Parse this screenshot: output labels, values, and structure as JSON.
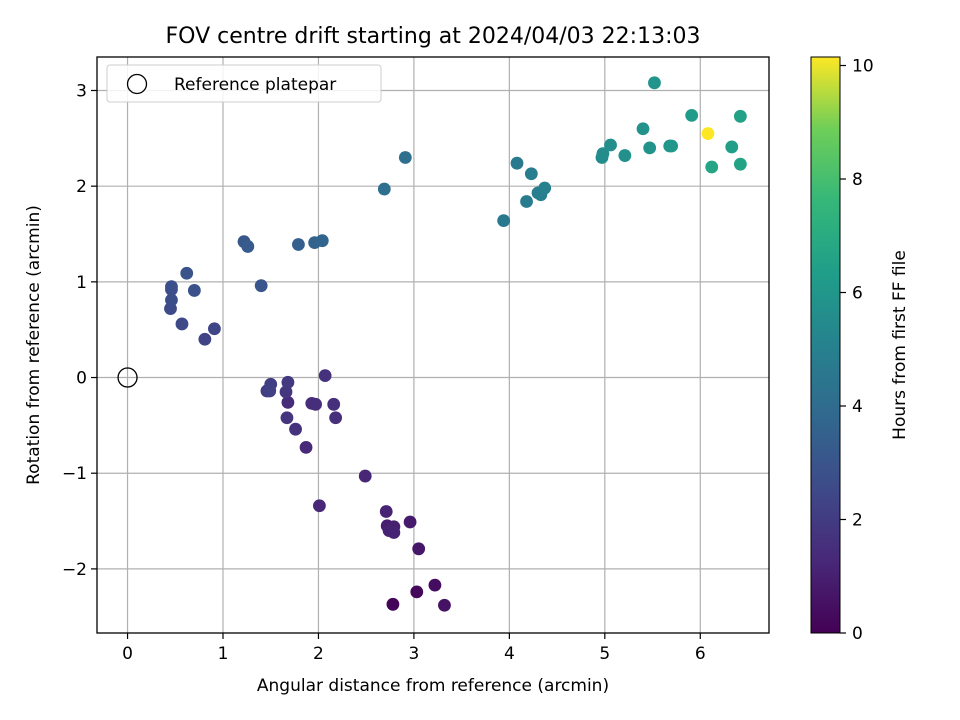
{
  "chart_data": {
    "type": "scatter",
    "title": "FOV centre drift starting at 2024/04/03 22:13:03",
    "xlabel": "Angular distance from reference (arcmin)",
    "ylabel": "Rotation from reference (arcmin)",
    "xlim": [
      -0.32,
      6.72
    ],
    "ylim": [
      -2.67,
      3.35
    ],
    "xticks": [
      0,
      1,
      2,
      3,
      4,
      5,
      6
    ],
    "yticks": [
      -2,
      -1,
      0,
      1,
      2,
      3
    ],
    "xtick_labels": [
      "0",
      "1",
      "2",
      "3",
      "4",
      "5",
      "6"
    ],
    "ytick_labels": [
      "−2",
      "−1",
      "0",
      "1",
      "2",
      "3"
    ],
    "grid": true,
    "legend": {
      "placement": "top-left",
      "entries": [
        "Reference platepar"
      ]
    },
    "reference_point": {
      "x": 0,
      "y": 0,
      "label": "Reference platepar"
    },
    "colorbar": {
      "label": "Hours from first FF file",
      "colormap": "viridis",
      "range": [
        0,
        10.15
      ],
      "ticks": [
        0,
        2,
        4,
        6,
        8,
        10
      ],
      "tick_labels": [
        "0",
        "2",
        "4",
        "6",
        "8",
        "10"
      ]
    },
    "points": [
      {
        "x": 2.78,
        "y": -2.37,
        "c": 0.1
      },
      {
        "x": 3.03,
        "y": -2.24,
        "c": 0.25
      },
      {
        "x": 3.22,
        "y": -2.17,
        "c": 0.4
      },
      {
        "x": 3.32,
        "y": -2.38,
        "c": 0.55
      },
      {
        "x": 3.05,
        "y": -1.79,
        "c": 0.7
      },
      {
        "x": 2.96,
        "y": -1.51,
        "c": 0.85
      },
      {
        "x": 2.72,
        "y": -1.55,
        "c": 0.95
      },
      {
        "x": 2.79,
        "y": -1.56,
        "c": 1.0
      },
      {
        "x": 2.74,
        "y": -1.6,
        "c": 1.05
      },
      {
        "x": 2.79,
        "y": -1.62,
        "c": 1.1
      },
      {
        "x": 2.71,
        "y": -1.4,
        "c": 1.15
      },
      {
        "x": 2.49,
        "y": -1.03,
        "c": 1.25
      },
      {
        "x": 2.01,
        "y": -1.34,
        "c": 1.3
      },
      {
        "x": 1.87,
        "y": -0.73,
        "c": 1.35
      },
      {
        "x": 1.68,
        "y": -0.26,
        "c": 1.4
      },
      {
        "x": 1.93,
        "y": -0.27,
        "c": 1.45
      },
      {
        "x": 1.97,
        "y": -0.28,
        "c": 1.5
      },
      {
        "x": 2.16,
        "y": -0.28,
        "c": 1.55
      },
      {
        "x": 2.18,
        "y": -0.42,
        "c": 1.55
      },
      {
        "x": 2.07,
        "y": 0.02,
        "c": 1.6
      },
      {
        "x": 1.76,
        "y": -0.54,
        "c": 1.65
      },
      {
        "x": 1.67,
        "y": -0.42,
        "c": 1.75
      },
      {
        "x": 1.66,
        "y": -0.15,
        "c": 1.8
      },
      {
        "x": 1.68,
        "y": -0.05,
        "c": 1.9
      },
      {
        "x": 1.46,
        "y": -0.14,
        "c": 2.0
      },
      {
        "x": 1.5,
        "y": -0.07,
        "c": 2.1
      },
      {
        "x": 1.49,
        "y": -0.14,
        "c": 2.15
      },
      {
        "x": 0.81,
        "y": 0.4,
        "c": 2.3
      },
      {
        "x": 0.91,
        "y": 0.51,
        "c": 2.4
      },
      {
        "x": 0.57,
        "y": 0.56,
        "c": 2.5
      },
      {
        "x": 0.45,
        "y": 0.72,
        "c": 2.6
      },
      {
        "x": 0.46,
        "y": 0.81,
        "c": 2.7
      },
      {
        "x": 0.46,
        "y": 0.92,
        "c": 2.75
      },
      {
        "x": 0.46,
        "y": 0.95,
        "c": 2.8
      },
      {
        "x": 0.7,
        "y": 0.91,
        "c": 2.85
      },
      {
        "x": 0.62,
        "y": 1.09,
        "c": 2.9
      },
      {
        "x": 1.4,
        "y": 0.96,
        "c": 3.0
      },
      {
        "x": 1.22,
        "y": 1.42,
        "c": 3.15
      },
      {
        "x": 1.26,
        "y": 1.37,
        "c": 3.25
      },
      {
        "x": 1.79,
        "y": 1.39,
        "c": 3.45
      },
      {
        "x": 1.96,
        "y": 1.41,
        "c": 3.6
      },
      {
        "x": 2.04,
        "y": 1.43,
        "c": 3.7
      },
      {
        "x": 2.69,
        "y": 1.97,
        "c": 4.1
      },
      {
        "x": 2.91,
        "y": 2.3,
        "c": 4.2
      },
      {
        "x": 3.94,
        "y": 1.64,
        "c": 4.6
      },
      {
        "x": 4.08,
        "y": 2.24,
        "c": 4.7
      },
      {
        "x": 4.18,
        "y": 1.84,
        "c": 4.8
      },
      {
        "x": 4.23,
        "y": 2.13,
        "c": 4.85
      },
      {
        "x": 4.3,
        "y": 1.93,
        "c": 4.9
      },
      {
        "x": 4.33,
        "y": 1.91,
        "c": 4.95
      },
      {
        "x": 4.37,
        "y": 1.98,
        "c": 5.0
      },
      {
        "x": 4.97,
        "y": 2.3,
        "c": 5.5
      },
      {
        "x": 4.98,
        "y": 2.34,
        "c": 5.55
      },
      {
        "x": 5.06,
        "y": 2.43,
        "c": 5.6
      },
      {
        "x": 5.21,
        "y": 2.32,
        "c": 5.7
      },
      {
        "x": 5.4,
        "y": 2.6,
        "c": 5.8
      },
      {
        "x": 5.47,
        "y": 2.4,
        "c": 5.85
      },
      {
        "x": 5.52,
        "y": 3.08,
        "c": 5.9
      },
      {
        "x": 5.68,
        "y": 2.42,
        "c": 6.0
      },
      {
        "x": 5.7,
        "y": 2.42,
        "c": 6.05
      },
      {
        "x": 5.91,
        "y": 2.74,
        "c": 6.2
      },
      {
        "x": 6.33,
        "y": 2.41,
        "c": 6.4
      },
      {
        "x": 6.42,
        "y": 2.73,
        "c": 6.5
      },
      {
        "x": 6.42,
        "y": 2.23,
        "c": 6.6
      },
      {
        "x": 6.12,
        "y": 2.2,
        "c": 6.7
      },
      {
        "x": 6.08,
        "y": 2.55,
        "c": 10.15
      }
    ]
  }
}
